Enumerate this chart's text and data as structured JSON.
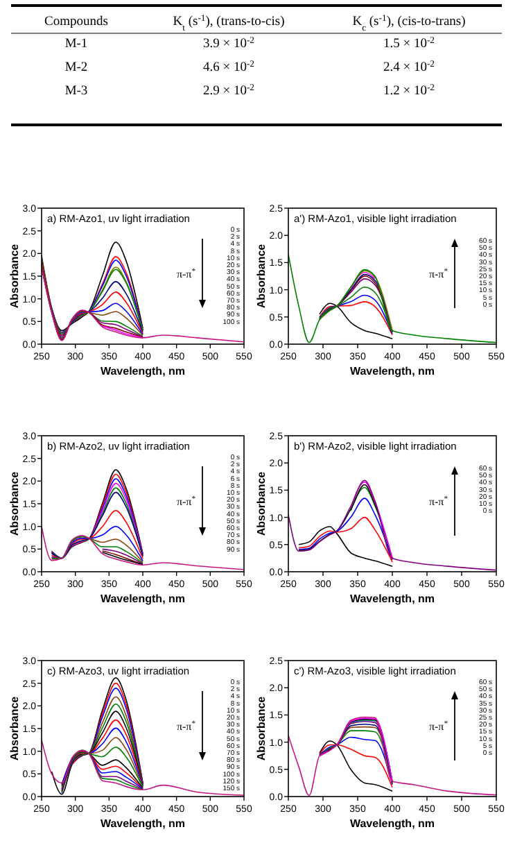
{
  "chart_data": [
    {
      "type": "other",
      "annotations": [
        "Compounds",
        "K$_{t}$ (s$^{-1}$), (trans-to-cis)",
        "K$_{c}$ (s$^{-1}$), (cis-to-trans)",
        "M-1",
        "3.9 × 10$^{-2}$",
        "1.5 × 10$^{-2}$",
        "M-2",
        "4.6 × 10$^{-2}$",
        "2.4 × 10$^{-2}$",
        "M-3",
        "2.9 × 10$^{-2}$",
        "1.2 × 10$^{-2}$"
      ]
    },
    {
      "type": "line",
      "title": "a) RM-Azo1, uv light irradiation",
      "xlabel": "Wavelength, nm",
      "ylabel": "Absorbance",
      "x": [
        250,
        265,
        280,
        295,
        310,
        320,
        340,
        360,
        375,
        400,
        430,
        480,
        550
      ],
      "xlim": [
        250,
        550
      ],
      "xticks": [
        250,
        300,
        350,
        400,
        450,
        500,
        550
      ],
      "ylim": [
        0,
        3
      ],
      "yticks": [
        {
          "value": 0,
          "label": "0.0"
        },
        0.5,
        {
          "value": 1,
          "label": "1.0"
        },
        1.5,
        {
          "value": 2,
          "label": "2.0"
        },
        2.5,
        {
          "value": 3,
          "label": "3.0"
        }
      ],
      "annotations": [
        "π-π$^{*}$",
        "0 s",
        "2 s",
        "4 s",
        "8 s",
        "10 s",
        "20 s",
        "30 s",
        "40 s",
        "50 s",
        "60 s",
        "70 s",
        "80 s",
        "90 s",
        "100 s"
      ],
      "series": [
        {
          "color": "#000000",
          "values": [
            1.95,
            0.8,
            0.3,
            0.45,
            0.6,
            0.72,
            1.5,
            2.25,
            1.85,
            0.35,
            null,
            null,
            null
          ]
        },
        {
          "color": "#ff0000",
          "values": [
            1.91,
            0.78,
            0.26,
            0.47,
            0.62,
            0.72,
            1.32,
            1.93,
            1.59,
            0.32,
            null,
            null,
            null
          ]
        },
        {
          "color": "#0000ff",
          "values": [
            null,
            0.78,
            0.26,
            0.47,
            0.63,
            0.72,
            1.28,
            1.85,
            1.52,
            0.31,
            null,
            null,
            null
          ]
        },
        {
          "color": "#808000",
          "values": [
            1.88,
            0.77,
            0.24,
            0.48,
            0.64,
            0.71,
            1.19,
            1.7,
            1.39,
            0.29,
            null,
            null,
            null
          ]
        },
        {
          "color": "#008000",
          "values": [
            1.88,
            0.77,
            0.23,
            0.48,
            0.65,
            0.71,
            1.16,
            1.65,
            1.36,
            0.29,
            null,
            null,
            null
          ]
        },
        {
          "color": "#000080",
          "values": [
            1.84,
            0.76,
            0.2,
            0.49,
            0.67,
            0.71,
            1.01,
            1.38,
            1.12,
            0.26,
            null,
            null,
            null
          ]
        },
        {
          "color": "#ff0000",
          "values": [
            1.81,
            0.74,
            0.18,
            0.51,
            0.68,
            0.71,
            0.87,
            1.15,
            0.93,
            0.23,
            null,
            null,
            null
          ]
        },
        {
          "color": "#0000ff",
          "values": [
            null,
            0.73,
            0.15,
            0.52,
            0.7,
            0.71,
            0.74,
            0.9,
            0.73,
            0.21,
            null,
            null,
            null
          ]
        },
        {
          "color": "#8b4513",
          "values": [
            1.76,
            0.72,
            0.13,
            0.53,
            0.72,
            0.7,
            0.64,
            0.72,
            0.58,
            0.19,
            null,
            null,
            null
          ]
        },
        {
          "color": "#008000",
          "values": [
            1.73,
            0.71,
            0.11,
            0.54,
            0.73,
            0.7,
            0.51,
            0.5,
            0.4,
            0.17,
            null,
            null,
            null
          ]
        },
        {
          "color": "#800080",
          "values": [
            1.72,
            0.71,
            0.1,
            0.54,
            0.74,
            0.7,
            0.47,
            0.43,
            0.33,
            0.16,
            null,
            null,
            null
          ]
        },
        {
          "color": "#800000",
          "values": [
            1.71,
            0.7,
            0.09,
            0.55,
            0.74,
            0.7,
            0.42,
            0.35,
            0.27,
            0.15,
            null,
            null,
            null
          ]
        },
        {
          "color": "#ff00ff",
          "values": [
            null,
            null,
            null,
            null,
            null,
            null,
            0.4,
            0.31,
            0.23,
            0.14,
            null,
            null,
            null
          ]
        },
        {
          "color": "#c71585",
          "values": [
            1.7,
            0.7,
            0.08,
            0.55,
            0.75,
            0.7,
            0.38,
            0.27,
            0.2,
            0.14,
            0.2,
            0.14,
            0.05
          ]
        }
      ]
    },
    {
      "type": "line",
      "title": "a') RM-Azo1, visible light irradiation",
      "xlabel": "Wavelength, nm",
      "ylabel": "Absorbance",
      "x": [
        250,
        265,
        280,
        295,
        310,
        320,
        340,
        360,
        375,
        400,
        430,
        480,
        550
      ],
      "xlim": [
        250,
        550
      ],
      "xticks": [
        250,
        300,
        350,
        400,
        450,
        500,
        550
      ],
      "ylim": [
        0,
        2.5
      ],
      "yticks": [
        {
          "value": 0,
          "label": "0.0"
        },
        0.5,
        {
          "value": 1,
          "label": "1.0"
        },
        1.5,
        {
          "value": 2,
          "label": "2.0"
        },
        2.5
      ],
      "annotations": [
        "π-π$^{*}$",
        "60 s",
        "50 s",
        "40 s",
        "30 s",
        "25 s",
        "20 s",
        "15 s",
        "10 s",
        "5 s",
        "0 s"
      ],
      "series": [
        {
          "color": "#000000",
          "values": [
            null,
            null,
            null,
            0.55,
            0.75,
            0.7,
            0.4,
            0.25,
            0.2,
            0.1,
            null,
            null,
            null
          ]
        },
        {
          "color": "#ff0000",
          "values": [
            null,
            null,
            null,
            0.5,
            0.69,
            0.7,
            0.71,
            0.78,
            0.69,
            0.17,
            null,
            null,
            null
          ]
        },
        {
          "color": "#0000ff",
          "values": [
            null,
            null,
            null,
            0.49,
            0.67,
            0.7,
            0.78,
            0.9,
            0.81,
            0.19,
            null,
            null,
            null
          ]
        },
        {
          "color": "#008000",
          "values": [
            null,
            null,
            null,
            0.48,
            0.66,
            0.7,
            0.86,
            1.05,
            0.95,
            0.21,
            null,
            null,
            null
          ]
        },
        {
          "color": "#800080",
          "values": [
            null,
            null,
            null,
            0.47,
            0.64,
            0.7,
            0.95,
            1.2,
            1.09,
            0.23,
            null,
            null,
            null
          ]
        },
        {
          "color": "#800000",
          "values": [
            null,
            null,
            null,
            0.46,
            0.63,
            0.7,
            0.98,
            1.25,
            1.13,
            0.23,
            null,
            null,
            null
          ]
        },
        {
          "color": "#000080",
          "values": [
            null,
            null,
            null,
            0.46,
            0.63,
            0.7,
            1.0,
            1.28,
            1.17,
            0.24,
            null,
            null,
            null
          ]
        },
        {
          "color": "#ff00ff",
          "values": [
            null,
            null,
            null,
            null,
            null,
            null,
            1.02,
            1.32,
            1.21,
            null,
            null,
            null,
            null
          ]
        },
        {
          "color": "#808000",
          "values": [
            null,
            null,
            null,
            0.45,
            0.62,
            0.7,
            1.04,
            1.35,
            1.23,
            0.25,
            null,
            null,
            null
          ]
        },
        {
          "color": "#008000",
          "values": [
            1.65,
            0.7,
            0.03,
            0.45,
            0.62,
            0.7,
            1.05,
            1.37,
            1.25,
            0.25,
            0.17,
            0.1,
            0.03
          ]
        }
      ]
    },
    {
      "type": "line",
      "title": "b) RM-Azo2, uv light irradiation",
      "xlabel": "Wavelength, nm",
      "ylabel": "Absorbance",
      "x": [
        250,
        265,
        280,
        295,
        310,
        320,
        340,
        360,
        375,
        400,
        430,
        480,
        550
      ],
      "xlim": [
        250,
        550
      ],
      "xticks": [
        250,
        300,
        350,
        400,
        450,
        500,
        550
      ],
      "ylim": [
        0,
        3
      ],
      "yticks": [
        {
          "value": 0,
          "label": "0.0"
        },
        0.5,
        {
          "value": 1,
          "label": "1.0"
        },
        1.5,
        {
          "value": 2,
          "label": "2.0"
        },
        2.5,
        {
          "value": 3,
          "label": "3.0"
        }
      ],
      "annotations": [
        "π-π$^{*}$",
        "0 s",
        "2 s",
        "4 s",
        "6 s",
        "8 s",
        "10 s",
        "20 s",
        "30 s",
        "40 s",
        "50 s",
        "60 s",
        "70 s",
        "80 s",
        "90 s"
      ],
      "series": [
        {
          "color": "#000000",
          "values": [
            null,
            0.45,
            0.3,
            0.55,
            0.65,
            0.72,
            1.5,
            2.25,
            1.85,
            0.4,
            null,
            null,
            null
          ]
        },
        {
          "color": "#ff0000",
          "values": [
            null,
            0.44,
            0.3,
            0.56,
            0.66,
            0.72,
            1.45,
            2.15,
            1.77,
            0.39,
            null,
            null,
            null
          ]
        },
        {
          "color": "#0000ff",
          "values": [
            null,
            0.43,
            0.3,
            0.57,
            0.67,
            0.72,
            1.39,
            2.05,
            1.69,
            0.38,
            null,
            null,
            null
          ]
        },
        {
          "color": "#ff00ff",
          "values": [
            null,
            null,
            null,
            0.57,
            0.67,
            0.72,
            1.34,
            1.95,
            1.61,
            0.36,
            null,
            null,
            null
          ]
        },
        {
          "color": "#008000",
          "values": [
            null,
            0.41,
            0.3,
            0.58,
            0.68,
            0.72,
            1.28,
            1.85,
            1.52,
            0.35,
            null,
            null,
            null
          ]
        },
        {
          "color": "#000080",
          "values": [
            null,
            0.4,
            0.3,
            0.59,
            0.69,
            0.73,
            1.23,
            1.75,
            1.44,
            0.34,
            null,
            null,
            null
          ]
        },
        {
          "color": "#ff0000",
          "values": [
            null,
            0.36,
            0.3,
            0.62,
            0.72,
            0.73,
            0.99,
            1.35,
            1.1,
            0.29,
            null,
            null,
            null
          ]
        },
        {
          "color": "#0000ff",
          "values": [
            null,
            0.32,
            0.3,
            0.64,
            0.74,
            0.73,
            0.81,
            1.0,
            0.82,
            0.24,
            null,
            null,
            null
          ]
        },
        {
          "color": "#8b4513",
          "values": [
            null,
            0.3,
            0.3,
            0.67,
            0.77,
            0.74,
            0.65,
            0.72,
            0.59,
            0.21,
            null,
            null,
            null
          ]
        },
        {
          "color": "#008000",
          "values": [
            null,
            0.28,
            0.3,
            0.68,
            0.78,
            0.74,
            0.55,
            0.55,
            0.45,
            0.19,
            null,
            null,
            null
          ]
        },
        {
          "color": "#800080",
          "values": [
            null,
            null,
            null,
            null,
            null,
            null,
            0.5,
            0.45,
            0.37,
            0.17,
            null,
            null,
            null
          ]
        },
        {
          "color": "#800000",
          "values": [
            null,
            null,
            null,
            null,
            null,
            null,
            0.46,
            0.38,
            0.3,
            0.16,
            null,
            null,
            null
          ]
        },
        {
          "color": "#000000",
          "values": [
            null,
            null,
            null,
            null,
            null,
            null,
            0.43,
            0.33,
            0.26,
            0.16,
            null,
            null,
            null
          ]
        },
        {
          "color": "#c71585",
          "values": [
            1.0,
            0.25,
            0.3,
            0.7,
            0.8,
            0.74,
            0.4,
            0.28,
            0.22,
            0.15,
            0.2,
            0.13,
            0.05
          ]
        }
      ]
    },
    {
      "type": "line",
      "title": "b') RM-Azo2, visible light irradiation",
      "xlabel": "Wavelength, nm",
      "ylabel": "Absorbance",
      "x": [
        250,
        265,
        280,
        295,
        310,
        320,
        340,
        360,
        375,
        400,
        430,
        480,
        550
      ],
      "xlim": [
        250,
        550
      ],
      "xticks": [
        250,
        300,
        350,
        400,
        450,
        500,
        550
      ],
      "ylim": [
        0,
        2.5
      ],
      "yticks": [
        {
          "value": 0,
          "label": "0.0"
        },
        0.5,
        {
          "value": 1,
          "label": "1.0"
        },
        1.5,
        {
          "value": 2,
          "label": "2.0"
        },
        2.5
      ],
      "annotations": [
        "π-π$^{*}$",
        "60 s",
        "50 s",
        "40 s",
        "30 s",
        "20 s",
        "10 s",
        "0 s"
      ],
      "series": [
        {
          "color": "#000000",
          "values": [
            null,
            0.5,
            0.55,
            0.75,
            0.83,
            0.7,
            0.35,
            0.25,
            0.2,
            0.1,
            null,
            null,
            null
          ]
        },
        {
          "color": "#ff0000",
          "values": [
            null,
            0.44,
            0.47,
            0.65,
            0.75,
            0.73,
            0.79,
            1.0,
            0.77,
            0.18,
            null,
            null,
            null
          ]
        },
        {
          "color": "#0000ff",
          "values": [
            null,
            0.41,
            0.43,
            0.6,
            0.71,
            0.74,
            1.0,
            1.35,
            1.05,
            0.22,
            null,
            null,
            null
          ]
        },
        {
          "color": "#008000",
          "values": [
            null,
            null,
            null,
            null,
            null,
            null,
            1.12,
            1.55,
            1.21,
            0.24,
            null,
            null,
            null
          ]
        },
        {
          "color": "#000000",
          "values": [
            null,
            0.39,
            0.41,
            0.56,
            0.69,
            0.75,
            1.15,
            1.6,
            1.24,
            0.24,
            null,
            null,
            null
          ]
        },
        {
          "color": "#ff00ff",
          "values": [
            null,
            null,
            null,
            null,
            null,
            null,
            1.18,
            1.65,
            1.28,
            0.25,
            null,
            null,
            null
          ]
        },
        {
          "color": "#800080",
          "values": [
            1.05,
            0.38,
            0.4,
            0.55,
            0.68,
            0.75,
            1.2,
            1.68,
            1.3,
            0.25,
            0.17,
            0.1,
            0.03
          ]
        }
      ]
    },
    {
      "type": "line",
      "title": "c) RM-Azo3, uv light irradiation",
      "xlabel": "Wavelength, nm",
      "ylabel": "Absorbance",
      "x": [
        250,
        265,
        280,
        295,
        310,
        320,
        340,
        360,
        375,
        400,
        430,
        480,
        550
      ],
      "xlim": [
        250,
        550
      ],
      "xticks": [
        250,
        300,
        350,
        400,
        450,
        500,
        550
      ],
      "ylim": [
        0,
        3
      ],
      "yticks": [
        {
          "value": 0,
          "label": "0.0"
        },
        0.5,
        {
          "value": 1,
          "label": "1.0"
        },
        1.5,
        {
          "value": 2,
          "label": "2.0"
        },
        2.5,
        {
          "value": 3,
          "label": "3.0"
        }
      ],
      "annotations": [
        "π-π$^{*}$",
        "0 s",
        "2 s",
        "4 s",
        "8 s",
        "10 s",
        "20 s",
        "30 s",
        "40 s",
        "50 s",
        "60 s",
        "70 s",
        "80 s",
        "90 s",
        "100 s",
        "120 s",
        "150 s"
      ],
      "series": [
        {
          "color": "#000000",
          "values": [
            null,
            0.55,
            0.05,
            0.7,
            0.9,
            0.95,
            1.9,
            2.62,
            2.15,
            0.3,
            null,
            null,
            null
          ]
        },
        {
          "color": "#ff0000",
          "values": [
            null,
            null,
            null,
            0.71,
            0.91,
            0.95,
            1.82,
            2.5,
            2.05,
            0.29,
            null,
            null,
            null
          ]
        },
        {
          "color": "#0000ff",
          "values": [
            null,
            null,
            0.08,
            0.72,
            0.91,
            0.95,
            1.75,
            2.39,
            1.96,
            0.29,
            null,
            null,
            null
          ]
        },
        {
          "color": "#8b4513",
          "values": [
            null,
            null,
            0.1,
            0.73,
            0.92,
            0.95,
            1.62,
            2.2,
            1.8,
            0.27,
            null,
            null,
            null
          ]
        },
        {
          "color": "#008000",
          "values": [
            null,
            null,
            0.11,
            0.74,
            0.93,
            0.95,
            1.51,
            2.04,
            1.67,
            0.26,
            null,
            null,
            null
          ]
        },
        {
          "color": "#000000",
          "values": [
            null,
            null,
            0.13,
            0.75,
            0.94,
            0.95,
            1.4,
            1.88,
            1.53,
            0.25,
            null,
            null,
            null
          ]
        },
        {
          "color": "#ff0000",
          "values": [
            null,
            null,
            0.15,
            0.76,
            0.95,
            0.95,
            1.28,
            1.69,
            1.38,
            0.24,
            null,
            null,
            null
          ]
        },
        {
          "color": "#0000ff",
          "values": [
            null,
            null,
            0.17,
            0.77,
            0.96,
            0.95,
            1.16,
            1.51,
            1.22,
            0.23,
            null,
            null,
            null
          ]
        },
        {
          "color": "#8b4513",
          "values": [
            null,
            null,
            0.19,
            0.79,
            0.97,
            0.95,
            1.02,
            1.3,
            1.05,
            0.21,
            null,
            null,
            null
          ]
        },
        {
          "color": "#008000",
          "values": [
            null,
            null,
            0.22,
            0.8,
            0.98,
            0.95,
            0.88,
            1.09,
            0.88,
            0.2,
            null,
            null,
            null
          ]
        },
        {
          "color": "#000000",
          "values": [
            null,
            null,
            0.25,
            0.82,
            0.99,
            0.95,
            0.69,
            0.81,
            0.64,
            0.18,
            null,
            null,
            null
          ]
        },
        {
          "color": "#ff0000",
          "values": [
            null,
            null,
            0.26,
            0.83,
            1.0,
            0.95,
            0.6,
            0.67,
            0.53,
            0.17,
            null,
            null,
            null
          ]
        },
        {
          "color": "#0000ff",
          "values": [
            null,
            null,
            0.27,
            0.83,
            1.01,
            0.95,
            0.52,
            0.55,
            0.43,
            0.17,
            null,
            null,
            null
          ]
        },
        {
          "color": "#800080",
          "values": [
            null,
            null,
            null,
            0.84,
            1.01,
            0.95,
            0.44,
            0.44,
            0.34,
            0.16,
            null,
            null,
            null
          ]
        },
        {
          "color": "#008000",
          "values": [
            null,
            null,
            null,
            0.85,
            1.02,
            0.95,
            0.4,
            0.37,
            0.28,
            0.15,
            null,
            null,
            null
          ]
        },
        {
          "color": "#c71585",
          "values": [
            1.25,
            0.5,
            0.3,
            0.85,
            1.02,
            0.95,
            0.35,
            0.3,
            0.22,
            0.15,
            0.25,
            0.1,
            0.03
          ]
        }
      ]
    },
    {
      "type": "line",
      "title": "c') RM-Azo3, visible light irradiation",
      "xlabel": "Wavelength, nm",
      "ylabel": "Absorbance",
      "x": [
        250,
        265,
        280,
        295,
        310,
        320,
        340,
        360,
        375,
        400,
        430,
        480,
        550
      ],
      "xlim": [
        250,
        550
      ],
      "xticks": [
        250,
        300,
        350,
        400,
        450,
        500,
        550
      ],
      "ylim": [
        0,
        2.5
      ],
      "yticks": [
        {
          "value": 0,
          "label": "0.0"
        },
        0.5,
        {
          "value": 1,
          "label": "1.0"
        },
        1.5,
        {
          "value": 2,
          "label": "2.0"
        },
        2.5
      ],
      "annotations": [
        "π-π$^{*}$",
        "60 s",
        "50 s",
        "40 s",
        "35 s",
        "30 s",
        "25 s",
        "20 s",
        "15 s",
        "10 s",
        "5 s",
        "0 s"
      ],
      "series": [
        {
          "color": "#000000",
          "values": [
            null,
            null,
            null,
            0.8,
            1.02,
            0.95,
            0.5,
            0.25,
            0.22,
            0.1,
            null,
            null,
            null
          ]
        },
        {
          "color": "#ff0000",
          "values": [
            null,
            null,
            null,
            0.78,
            0.95,
            0.95,
            0.87,
            0.75,
            0.72,
            0.17,
            null,
            null,
            null
          ]
        },
        {
          "color": "#0000ff",
          "values": [
            null,
            null,
            null,
            0.77,
            0.91,
            0.95,
            1.09,
            1.05,
            1.03,
            0.22,
            null,
            null,
            null
          ]
        },
        {
          "color": "#008000",
          "values": [
            null,
            null,
            null,
            0.76,
            0.89,
            0.95,
            1.21,
            1.21,
            1.19,
            0.24,
            null,
            null,
            null
          ]
        },
        {
          "color": "#8b4513",
          "values": [
            null,
            null,
            null,
            0.76,
            0.88,
            0.95,
            1.27,
            1.28,
            1.27,
            0.25,
            null,
            null,
            null
          ]
        },
        {
          "color": "#000080",
          "values": [
            null,
            null,
            null,
            0.76,
            0.87,
            0.95,
            1.3,
            1.33,
            1.31,
            0.26,
            null,
            null,
            null
          ]
        },
        {
          "color": "#800080",
          "values": [
            null,
            null,
            null,
            0.75,
            0.86,
            0.95,
            1.34,
            1.38,
            1.36,
            0.27,
            null,
            null,
            null
          ]
        },
        {
          "color": "#008080",
          "values": [
            null,
            null,
            null,
            0.75,
            0.86,
            0.95,
            1.36,
            1.4,
            1.39,
            0.27,
            null,
            null,
            null
          ]
        },
        {
          "color": "#000000",
          "values": [
            null,
            null,
            null,
            0.75,
            0.86,
            0.95,
            1.37,
            1.42,
            1.41,
            0.27,
            null,
            null,
            null
          ]
        },
        {
          "color": "#ff00ff",
          "values": [
            null,
            null,
            null,
            0.75,
            0.85,
            0.95,
            1.38,
            1.44,
            1.43,
            0.28,
            null,
            null,
            null
          ]
        },
        {
          "color": "#c71585",
          "values": [
            1.12,
            0.55,
            0.02,
            0.75,
            0.85,
            0.95,
            1.4,
            1.46,
            1.45,
            0.28,
            0.22,
            0.1,
            0.03
          ]
        }
      ]
    }
  ]
}
